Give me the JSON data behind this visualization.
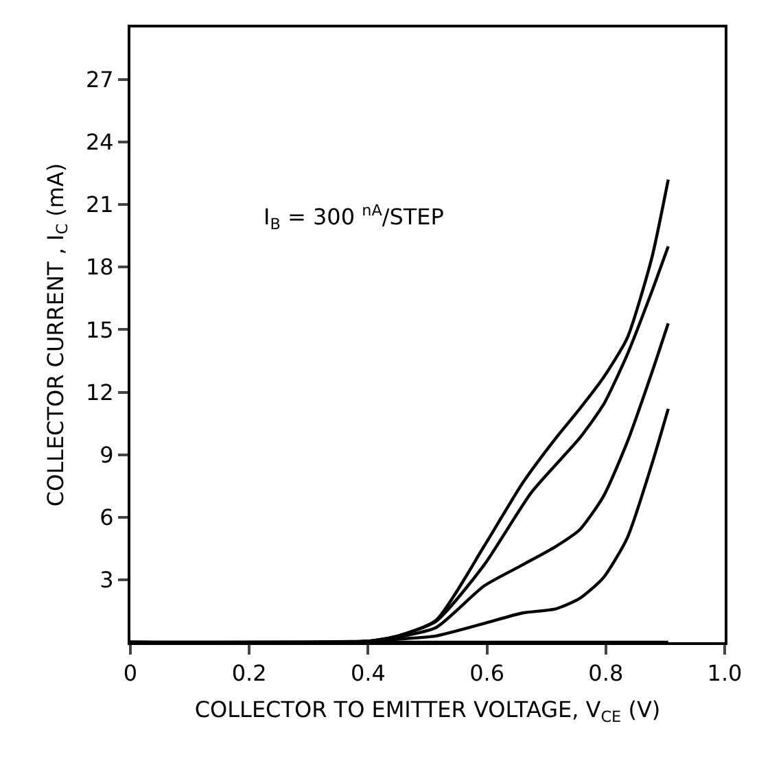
{
  "chart_data": {
    "type": "line",
    "xlabel": "COLLECTOR TO EMITTER VOLTAGE, V$_{CE}$ (V)",
    "ylabel": "COLLECTOR CURRENT , I$_{C}$ (mA)",
    "annotations": [
      "I$_{B}$ = 300 $^{nA}$/STEP"
    ],
    "xlim": [
      0,
      1
    ],
    "ylim": [
      0,
      29.5
    ],
    "xticks": [
      0,
      {
        "value": 0.2,
        "label": "0.2"
      },
      {
        "value": 0.4,
        "label": "0.4"
      },
      {
        "value": 0.6,
        "label": "0.6"
      },
      {
        "value": 0.8,
        "label": "0.8"
      },
      {
        "value": 1,
        "label": "1.0"
      }
    ],
    "yticks": [
      3,
      6,
      9,
      12,
      15,
      18,
      21,
      24,
      27
    ],
    "grid": false,
    "marker": "none",
    "line_style": "solid",
    "series": [
      {
        "color": "#000000",
        "x": [
          0,
          0.4,
          0.45,
          0.514,
          0.595,
          0.659,
          0.716,
          0.756,
          0.796,
          0.836,
          0.877,
          0.905
        ],
        "values": [
          0,
          0.05,
          0.3,
          1.05,
          4.6,
          7.6,
          9.8,
          11.2,
          12.7,
          14.6,
          18.4,
          22.2
        ]
      },
      {
        "color": "#000000",
        "x": [
          0,
          0.4,
          0.45,
          0.514,
          0.595,
          0.675,
          0.756,
          0.796,
          0.836,
          0.877,
          0.905
        ],
        "values": [
          0,
          0.05,
          0.3,
          1.0,
          3.7,
          7.2,
          9.8,
          11.4,
          13.8,
          16.8,
          19.0
        ]
      },
      {
        "color": "#000000",
        "x": [
          0,
          0.4,
          0.45,
          0.514,
          0.595,
          0.659,
          0.716,
          0.756,
          0.796,
          0.836,
          0.877,
          0.905
        ],
        "values": [
          0,
          0.05,
          0.25,
          0.7,
          2.7,
          3.7,
          4.6,
          5.4,
          7.0,
          9.6,
          12.9,
          15.3
        ]
      },
      {
        "color": "#000000",
        "x": [
          0,
          0.4,
          0.45,
          0.514,
          0.595,
          0.659,
          0.716,
          0.756,
          0.796,
          0.836,
          0.877,
          0.905
        ],
        "values": [
          0,
          0.05,
          0.15,
          0.3,
          0.9,
          1.4,
          1.6,
          2.1,
          3.1,
          5.0,
          8.5,
          11.2
        ]
      },
      {
        "color": "#000000",
        "x": [
          0,
          0.905
        ],
        "values": [
          0,
          0
        ]
      }
    ]
  }
}
